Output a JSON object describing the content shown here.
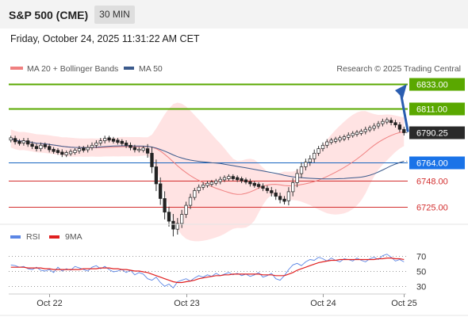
{
  "header": {
    "symbol": "S&P 500 (CME)",
    "timeframe": "30 MIN"
  },
  "datetime": "Friday, October 24, 2025 11:31:22 AM CET",
  "copyright": "Research © 2025 Trading Central",
  "colors": {
    "resistance": "#5aa800",
    "support": "#d32f2f",
    "pivot": "#1565c0",
    "bollinger_fill": "#ffd9d9",
    "ma20": "#f08080",
    "ma50": "#3b5a8c",
    "rsi": "#5b86e5",
    "rsi_ma": "#e02020",
    "arrow": "#2a5db0"
  },
  "chart_data": [
    {
      "type": "candlestick",
      "title": "",
      "legend": [
        "MA 20 + Bollinger Bands",
        "MA 50"
      ],
      "x_ticks": [
        "Oct 22",
        "Oct 23",
        "Oct 24",
        "Oct 25"
      ],
      "ylim": [
        6710,
        6840
      ],
      "last_price": 6790.25,
      "levels": [
        {
          "value": 6833.0,
          "label": "6833.00",
          "kind": "resistance"
        },
        {
          "value": 6811.0,
          "label": "6811.00",
          "kind": "resistance"
        },
        {
          "value": 6764.0,
          "label": "6764.00",
          "kind": "pivot"
        },
        {
          "value": 6748.0,
          "label": "6748.00",
          "kind": "support"
        },
        {
          "value": 6725.0,
          "label": "6725.00",
          "kind": "support"
        }
      ],
      "close": [
        6785,
        6782,
        6781,
        6783,
        6780,
        6778,
        6776,
        6779,
        6778,
        6775,
        6774,
        6773,
        6771,
        6772,
        6773,
        6774,
        6776,
        6775,
        6777,
        6779,
        6781,
        6783,
        6785,
        6784,
        6783,
        6782,
        6781,
        6779,
        6777,
        6775,
        6775,
        6776,
        6772,
        6760,
        6745,
        6732,
        6720,
        6712,
        6705,
        6710,
        6718,
        6726,
        6733,
        6739,
        6742,
        6744,
        6745,
        6746,
        6747,
        6749,
        6750,
        6751,
        6750,
        6749,
        6748,
        6747,
        6745,
        6744,
        6743,
        6741,
        6739,
        6737,
        6734,
        6731,
        6730,
        6738,
        6746,
        6754,
        6760,
        6764,
        6767,
        6772,
        6776,
        6779,
        6782,
        6783,
        6784,
        6785,
        6786,
        6788,
        6789,
        6790,
        6791,
        6793,
        6794,
        6796,
        6798,
        6800,
        6801,
        6799,
        6797,
        6793,
        6790
      ],
      "volatility": [
        3,
        3,
        3,
        3,
        3,
        3,
        3,
        3,
        3,
        3,
        3,
        3,
        3,
        3,
        3,
        3,
        3,
        3,
        3,
        3,
        3,
        3,
        3,
        3,
        3,
        3,
        3,
        3,
        3,
        3,
        3,
        3,
        5,
        7,
        8,
        7,
        8,
        6,
        8,
        6,
        5,
        4,
        4,
        3,
        3,
        3,
        3,
        3,
        3,
        3,
        3,
        3,
        3,
        3,
        3,
        3,
        3,
        3,
        3,
        3,
        3,
        4,
        4,
        4,
        4,
        5,
        5,
        5,
        5,
        4,
        4,
        4,
        3,
        3,
        3,
        3,
        3,
        3,
        3,
        3,
        3,
        3,
        3,
        3,
        3,
        3,
        3,
        3,
        3,
        3,
        3,
        3,
        3
      ]
    },
    {
      "type": "line",
      "title": "",
      "legend": [
        "RSI",
        "9MA"
      ],
      "ylim": [
        20,
        80
      ],
      "yticks": [
        70,
        50,
        30
      ],
      "series": [
        {
          "name": "RSI",
          "values": [
            58,
            57,
            55,
            56,
            53,
            52,
            55,
            51,
            50,
            52,
            48,
            55,
            50,
            53,
            51,
            56,
            54,
            52,
            50,
            55,
            57,
            53,
            56,
            52,
            49,
            50,
            52,
            48,
            51,
            45,
            48,
            46,
            40,
            38,
            42,
            35,
            30,
            33,
            28,
            36,
            38,
            40,
            37,
            41,
            44,
            42,
            45,
            43,
            47,
            44,
            46,
            48,
            45,
            47,
            44,
            46,
            43,
            45,
            48,
            42,
            44,
            47,
            40,
            38,
            44,
            52,
            58,
            60,
            57,
            62,
            65,
            64,
            68,
            66,
            63,
            67,
            64,
            62,
            66,
            65,
            63,
            67,
            64,
            62,
            66,
            68,
            65,
            70,
            72,
            68,
            63,
            65,
            62
          ]
        },
        {
          "name": "9MA",
          "values": [
            55,
            55,
            55,
            55,
            54,
            54,
            54,
            54,
            53,
            53,
            52,
            52,
            52,
            52,
            52,
            52,
            52,
            53,
            53,
            53,
            53,
            54,
            54,
            54,
            53,
            53,
            52,
            52,
            51,
            50,
            50,
            49,
            48,
            46,
            44,
            42,
            40,
            38,
            36,
            35,
            35,
            36,
            37,
            38,
            40,
            41,
            42,
            43,
            44,
            44,
            45,
            45,
            46,
            46,
            46,
            46,
            46,
            46,
            46,
            45,
            45,
            45,
            44,
            44,
            44,
            46,
            48,
            51,
            53,
            55,
            57,
            59,
            61,
            62,
            63,
            64,
            64,
            65,
            65,
            65,
            65,
            65,
            65,
            65,
            65,
            65,
            66,
            66,
            67,
            67,
            66,
            66,
            65
          ]
        }
      ]
    }
  ]
}
